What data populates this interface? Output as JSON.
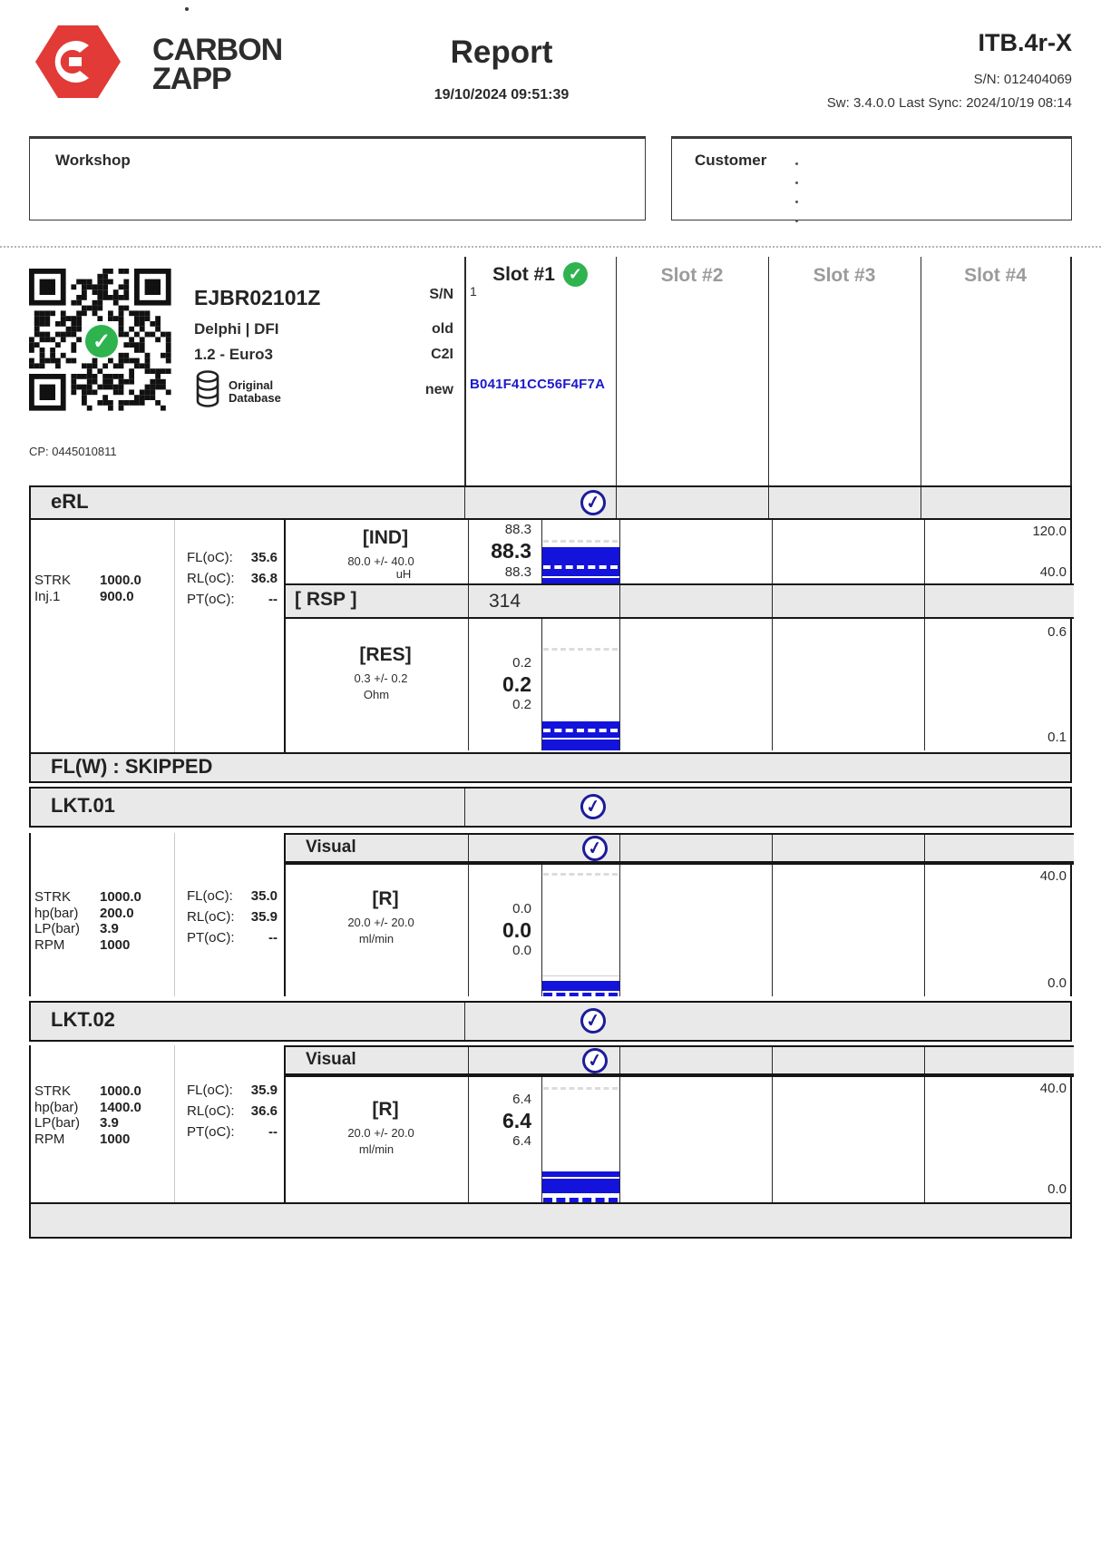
{
  "icons": {
    "check": "✓"
  },
  "colors": {
    "bar_blue": "#1313dc",
    "check_navy": "#1c1c9c",
    "pass_green": "#2fb34f",
    "brand_red": "#e23a36",
    "band_gray": "#e9e9e9"
  },
  "header": {
    "brand_line1": "CARBON",
    "brand_line2": "ZAPP",
    "title": "Report",
    "datetime": "19/10/2024 09:51:39",
    "device": "ITB.4r-X",
    "serial": "S/N: 012404069",
    "sync": "Sw: 3.4.0.0 Last Sync: 2024/10/19 08:14"
  },
  "workshop": {
    "label": "Workshop"
  },
  "customer": {
    "label": "Customer"
  },
  "injector": {
    "code": "EJBR02101Z",
    "brand": "Delphi | DFI",
    "type": "1.2 - Euro3",
    "db_line1": "Original",
    "db_line2": "Database",
    "cp": "CP: 0445010811",
    "labels": {
      "sn": "S/N",
      "old": "old",
      "c2i": "C2I",
      "new": "new"
    }
  },
  "slots": {
    "slot1": {
      "label": "Slot #1",
      "sn_value": "1",
      "c2i_value": "B041F41CC56F4F7A"
    },
    "slot2": {
      "label": "Slot #2"
    },
    "slot3": {
      "label": "Slot #3"
    },
    "slot4": {
      "label": "Slot #4"
    }
  },
  "erl": {
    "title": "eRL",
    "params": [
      {
        "label": "STRK",
        "value": "1000.0"
      },
      {
        "label": "Inj.1",
        "value": "900.0"
      }
    ],
    "temps": [
      {
        "label": "FL(oC):",
        "value": "35.6"
      },
      {
        "label": "RL(oC):",
        "value": "36.8"
      },
      {
        "label": "PT(oC):",
        "value": "--"
      }
    ],
    "ind": {
      "name": "[IND]",
      "tol": "80.0 +/- 40.0",
      "unit": "uH",
      "max": "120.0",
      "min": "40.0",
      "values": [
        "88.3",
        "88.3",
        "88.3"
      ]
    },
    "rsp": {
      "name": "[ RSP ]",
      "value": "314"
    },
    "res": {
      "name": "[RES]",
      "tol": "0.3 +/- 0.2",
      "unit": "Ohm",
      "max": "0.6",
      "min": "0.1",
      "values": [
        "0.2",
        "0.2",
        "0.2"
      ]
    }
  },
  "flw": {
    "title": "FL(W) : SKIPPED"
  },
  "lkt01": {
    "title": "LKT.01",
    "visual_label": "Visual",
    "params": [
      {
        "label": "STRK",
        "value": "1000.0"
      },
      {
        "label": "hp(bar)",
        "value": "200.0"
      },
      {
        "label": "LP(bar)",
        "value": "3.9"
      },
      {
        "label": "RPM",
        "value": "1000"
      }
    ],
    "temps": [
      {
        "label": "FL(oC):",
        "value": "35.0"
      },
      {
        "label": "RL(oC):",
        "value": "35.9"
      },
      {
        "label": "PT(oC):",
        "value": "--"
      }
    ],
    "r": {
      "name": "[R]",
      "tol": "20.0 +/- 20.0",
      "unit": "ml/min",
      "max": "40.0",
      "min": "0.0",
      "values": [
        "0.0",
        "0.0",
        "0.0"
      ]
    }
  },
  "lkt02": {
    "title": "LKT.02",
    "visual_label": "Visual",
    "params": [
      {
        "label": "STRK",
        "value": "1000.0"
      },
      {
        "label": "hp(bar)",
        "value": "1400.0"
      },
      {
        "label": "LP(bar)",
        "value": "3.9"
      },
      {
        "label": "RPM",
        "value": "1000"
      }
    ],
    "temps": [
      {
        "label": "FL(oC):",
        "value": "35.9"
      },
      {
        "label": "RL(oC):",
        "value": "36.6"
      },
      {
        "label": "PT(oC):",
        "value": "--"
      }
    ],
    "r": {
      "name": "[R]",
      "tol": "20.0 +/- 20.0",
      "unit": "ml/min",
      "max": "40.0",
      "min": "0.0",
      "values": [
        "6.4",
        "6.4",
        "6.4"
      ]
    }
  }
}
